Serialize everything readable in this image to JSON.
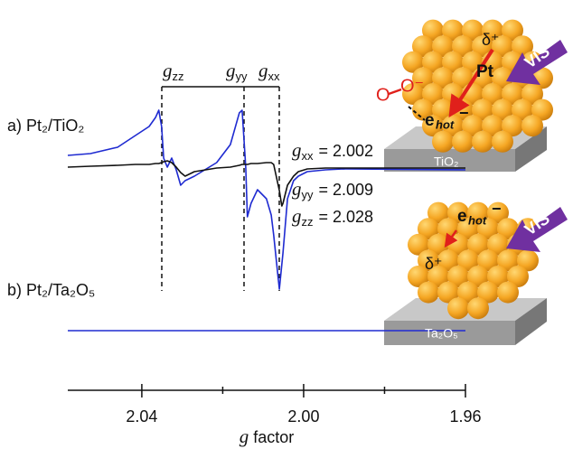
{
  "chart_data": [
    {
      "type": "line",
      "label": "a) Pt₂/TiO₂",
      "x": [
        2.0583,
        2.0527,
        2.046,
        2.0416,
        2.0382,
        2.0366,
        2.0358,
        2.0351,
        2.0346,
        2.0337,
        2.0326,
        2.0315,
        2.0304,
        2.0293,
        2.027,
        2.0215,
        2.0181,
        2.0159,
        2.0152,
        2.0143,
        2.0139,
        2.013,
        2.0114,
        2.0092,
        2.008,
        2.0074,
        2.0063,
        2.006,
        2.0054,
        2.0051,
        2.004,
        2.0025,
        2.0013,
        1.9991,
        1.9946,
        1.9902,
        1.96
      ],
      "xlim": [
        2.0583,
        1.96
      ],
      "ylim": [
        -150,
        70
      ],
      "series": [
        {
          "color": "#1f2bd1",
          "values": [
            11,
            13,
            20,
            33,
            43,
            53,
            61,
            43,
            8,
            -2,
            8,
            -5,
            -22,
            -17,
            -12,
            3,
            23,
            58,
            61,
            -2,
            -57,
            -42,
            -27,
            -37,
            -55,
            -77,
            -125,
            -137,
            -110,
            -97,
            -37,
            -17,
            -12,
            -7,
            -5,
            -4,
            -5
          ]
        },
        {
          "color": "#111111",
          "values": [
            -2,
            -1,
            0,
            1,
            1,
            2,
            2,
            3,
            4,
            5,
            3,
            -2,
            -8,
            -12,
            -7,
            -3,
            -2,
            0,
            1,
            1,
            1,
            2,
            2,
            3,
            3,
            1,
            -22,
            -28,
            -45,
            -42,
            -22,
            -12,
            -7,
            -4,
            -3,
            -3,
            -3
          ]
        }
      ],
      "markers": [
        {
          "symbol": "g",
          "sub": "zz"
        },
        {
          "symbol": "g",
          "sub": "yy"
        },
        {
          "symbol": "g",
          "sub": "xx"
        }
      ],
      "annotations": [
        {
          "symbol": "g",
          "sub": "xx",
          "text": "= 2.002"
        },
        {
          "symbol": "g",
          "sub": "yy",
          "text": "= 2.009"
        },
        {
          "symbol": "g",
          "sub": "zz",
          "text": "= 2.028"
        }
      ]
    },
    {
      "type": "line",
      "label": "b) Pt₂/Ta₂O₅",
      "x": [
        2.0583,
        1.96
      ],
      "xlim": [
        2.0583,
        1.96
      ],
      "ylim": [
        -10,
        10
      ],
      "series": [
        {
          "color": "#1f2bd1",
          "values": [
            0,
            0
          ]
        }
      ],
      "xticks": [
        2.04,
        {
          "value": 2,
          "label": "2.00"
        },
        1.96
      ],
      "minor_xticks": [
        2.02,
        1.98
      ],
      "xlabel_symbol": "g",
      "xlabel": "factor"
    }
  ],
  "illustrations": {
    "top": {
      "vis": "VIS",
      "metal": "Pt",
      "delta": "δ⁺",
      "o1": "O",
      "o2": "O⁻",
      "electron": "e",
      "electron_sub": "hot",
      "electron_charge": "−",
      "support": "TiO₂"
    },
    "bottom": {
      "vis": "VIS",
      "delta": "δ⁺",
      "electron": "e",
      "electron_sub": "hot",
      "electron_charge": "−",
      "support": "Ta₂O₅"
    }
  }
}
